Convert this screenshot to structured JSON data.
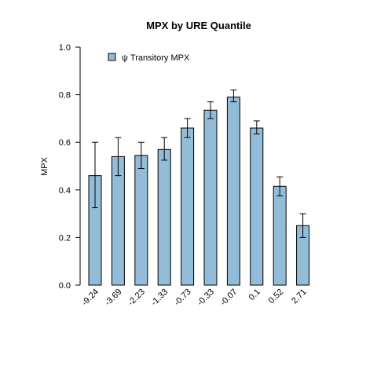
{
  "chart_data": {
    "type": "bar",
    "title": "MPX  by  URE Quantile",
    "xlabel": "",
    "ylabel": "MPX",
    "ylim": [
      0,
      1.0
    ],
    "yticks": [
      "0.0",
      "0.2",
      "0.4",
      "0.6",
      "0.8",
      "1.0"
    ],
    "categories": [
      "-9.24",
      "-3.69",
      "-2.23",
      "-1.33",
      "-0.73",
      "-0.33",
      "-0.07",
      "0.1",
      "0.52",
      "2.71"
    ],
    "series": [
      {
        "name": "ψ Transitory MPX",
        "values": [
          0.46,
          0.54,
          0.545,
          0.57,
          0.66,
          0.735,
          0.79,
          0.66,
          0.415,
          0.25
        ],
        "err_low": [
          0.325,
          0.46,
          0.49,
          0.525,
          0.62,
          0.7,
          0.77,
          0.635,
          0.375,
          0.2
        ],
        "err_high": [
          0.6,
          0.62,
          0.6,
          0.62,
          0.7,
          0.77,
          0.82,
          0.69,
          0.455,
          0.3
        ]
      }
    ],
    "legend": "top-left",
    "grid": false,
    "colors": {
      "bar_fill": "#93bcd8",
      "bar_stroke": "#000000"
    }
  }
}
